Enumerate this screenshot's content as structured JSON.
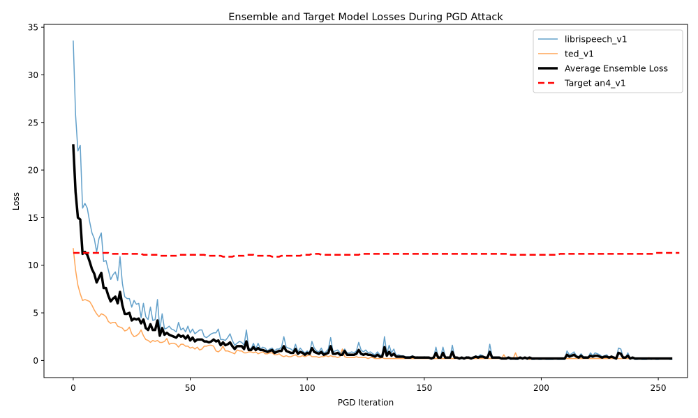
{
  "chart_data": {
    "type": "line",
    "title": "Ensemble and Target Model Losses During PGD Attack",
    "xlabel": "PGD Iteration",
    "ylabel": "Loss",
    "xlim": [
      -12.5,
      262.5
    ],
    "ylim": [
      -1.8,
      35.3
    ],
    "xticks": [
      0,
      50,
      100,
      150,
      200,
      250
    ],
    "yticks": [
      0,
      5,
      10,
      15,
      20,
      25,
      30,
      35
    ],
    "grid": false,
    "legend_position": "upper right",
    "x_start": 0,
    "x_step": 1,
    "series": [
      {
        "name": "librispeech_v1",
        "color": "#1f77b4",
        "opacity": 0.7,
        "width": 1.5,
        "dash": "",
        "values": [
          33.6,
          25.8,
          22.0,
          22.6,
          16.0,
          16.5,
          16.0,
          14.6,
          13.4,
          12.8,
          11.4,
          12.8,
          13.4,
          10.4,
          10.5,
          9.5,
          8.5,
          9.0,
          9.3,
          8.4,
          10.9,
          8.1,
          6.7,
          6.5,
          6.5,
          5.6,
          6.3,
          5.9,
          6.0,
          4.5,
          6.0,
          4.6,
          4.3,
          5.6,
          4.2,
          4.3,
          6.4,
          3.2,
          4.9,
          3.3,
          3.4,
          3.6,
          3.3,
          3.2,
          3.0,
          4.0,
          3.2,
          3.4,
          3.0,
          3.6,
          2.9,
          3.3,
          2.8,
          3.0,
          3.2,
          3.2,
          2.5,
          2.4,
          2.6,
          2.8,
          2.9,
          2.9,
          3.3,
          2.2,
          2.2,
          2.1,
          2.4,
          2.8,
          2.1,
          1.6,
          1.8,
          2.0,
          1.9,
          1.6,
          3.2,
          1.3,
          1.2,
          1.8,
          1.2,
          1.8,
          1.2,
          1.4,
          1.3,
          1.0,
          1.2,
          1.3,
          1.0,
          1.2,
          1.2,
          1.4,
          2.5,
          1.4,
          1.3,
          1.2,
          1.0,
          1.7,
          0.9,
          1.3,
          1.0,
          0.8,
          1.0,
          0.8,
          2.0,
          1.3,
          1.0,
          0.9,
          1.3,
          0.8,
          0.9,
          1.2,
          2.4,
          0.9,
          1.0,
          1.1,
          0.8,
          0.9,
          1.2,
          0.8,
          0.8,
          0.9,
          0.8,
          1.0,
          1.9,
          1.1,
          0.9,
          1.1,
          0.8,
          0.9,
          0.7,
          0.6,
          0.9,
          0.6,
          0.5,
          2.5,
          0.7,
          1.6,
          0.8,
          1.2,
          0.5,
          0.6,
          0.5,
          0.5,
          0.4,
          0.4,
          0.4,
          0.5,
          0.3,
          0.4,
          0.3,
          0.3,
          0.4,
          0.3,
          0.3,
          0.2,
          0.3,
          1.4,
          0.3,
          0.4,
          1.4,
          0.4,
          0.3,
          0.3,
          1.6,
          0.3,
          0.3,
          0.2,
          0.3,
          0.2,
          0.4,
          0.3,
          0.2,
          0.3,
          0.5,
          0.4,
          0.6,
          0.5,
          0.3,
          0.3,
          1.7,
          0.4,
          0.3,
          0.3,
          0.3,
          0.2,
          0.2,
          0.2,
          0.2,
          0.1,
          0.2,
          0.1,
          0.1,
          0.3,
          0.2,
          0.3,
          0.1,
          0.3,
          0.1,
          0.1,
          0.2,
          0.1,
          0.1,
          0.2,
          0.1,
          0.1,
          0.1,
          0.1,
          0.2,
          0.1,
          0.1,
          0.1,
          0.1,
          1.0,
          0.6,
          0.7,
          0.9,
          0.5,
          0.4,
          0.7,
          0.4,
          0.4,
          0.3,
          0.8,
          0.5,
          0.8,
          0.7,
          0.6,
          0.4,
          0.5,
          0.6,
          0.3,
          0.5,
          0.3,
          0.2,
          1.3,
          1.2,
          0.3,
          0.3,
          0.8,
          0.2,
          0.3,
          0.1,
          0.1,
          0.2,
          0.1,
          0.1,
          0.1,
          0.2,
          0.1,
          0.2,
          0.1,
          0.1,
          0.2,
          0.2,
          0.2,
          0.2,
          0.1,
          0.1
        ]
      },
      {
        "name": "ted_v1",
        "color": "#ff7f0e",
        "opacity": 0.7,
        "width": 1.5,
        "dash": "",
        "values": [
          11.8,
          9.5,
          7.9,
          7.0,
          6.3,
          6.4,
          6.3,
          6.2,
          5.8,
          5.3,
          4.9,
          4.6,
          4.9,
          4.8,
          4.6,
          4.1,
          3.9,
          4.0,
          4.0,
          3.6,
          3.5,
          3.4,
          3.1,
          3.2,
          3.5,
          2.8,
          2.5,
          2.6,
          2.8,
          3.2,
          2.6,
          2.2,
          2.1,
          1.9,
          2.1,
          2.0,
          2.1,
          1.9,
          1.9,
          2.0,
          2.3,
          1.7,
          1.8,
          1.8,
          1.7,
          1.4,
          1.7,
          1.7,
          1.5,
          1.5,
          1.3,
          1.4,
          1.2,
          1.4,
          1.1,
          1.2,
          1.5,
          1.5,
          1.6,
          1.6,
          1.5,
          1.0,
          0.9,
          1.1,
          1.5,
          1.0,
          1.0,
          0.9,
          0.8,
          0.7,
          1.1,
          1.0,
          1.0,
          0.8,
          0.8,
          0.9,
          0.9,
          0.8,
          0.9,
          0.7,
          0.8,
          0.9,
          0.7,
          0.7,
          0.8,
          0.8,
          0.6,
          0.6,
          0.7,
          0.5,
          0.4,
          0.5,
          0.4,
          0.4,
          0.5,
          0.6,
          0.4,
          0.4,
          0.5,
          0.4,
          0.5,
          0.6,
          0.4,
          0.4,
          0.4,
          0.3,
          0.4,
          0.4,
          0.5,
          0.4,
          0.5,
          0.4,
          0.4,
          0.3,
          0.4,
          1.2,
          0.4,
          0.3,
          0.3,
          0.3,
          0.3,
          0.4,
          0.3,
          0.3,
          0.3,
          0.3,
          0.2,
          0.3,
          0.3,
          0.2,
          0.2,
          0.2,
          0.3,
          0.2,
          0.2,
          0.2,
          0.2,
          0.2,
          0.2,
          0.2,
          0.2,
          0.2,
          0.2,
          0.2,
          0.2,
          0.2,
          0.2,
          0.2,
          0.2,
          0.2,
          0.2,
          0.2,
          0.2,
          0.2,
          0.2,
          0.2,
          0.2,
          0.2,
          0.2,
          0.2,
          0.2,
          0.2,
          0.2,
          0.2,
          0.2,
          0.2,
          0.2,
          0.2,
          0.2,
          0.2,
          0.2,
          0.2,
          0.2,
          0.2,
          0.2,
          0.2,
          0.2,
          0.2,
          0.2,
          0.2,
          0.2,
          0.2,
          0.2,
          0.2,
          0.6,
          0.2,
          0.2,
          0.3,
          0.2,
          0.8,
          0.2,
          0.2,
          0.2,
          0.2,
          0.2,
          0.1,
          0.2,
          0.2,
          0.2,
          0.2,
          0.2,
          0.2,
          0.2,
          0.2,
          0.2,
          0.2,
          0.2,
          0.2,
          0.2,
          0.2,
          0.2,
          0.2,
          0.2,
          0.2,
          0.2,
          0.2,
          0.2,
          0.2,
          0.2,
          0.2,
          0.2,
          0.2,
          0.2,
          0.2,
          0.2,
          0.2,
          0.2,
          0.2,
          0.2,
          0.2,
          0.2,
          0.2,
          0.2,
          0.2,
          0.2,
          0.2,
          0.2,
          0.2,
          0.2,
          0.2,
          0.2,
          0.2,
          0.2,
          0.2,
          0.2,
          0.2,
          0.3,
          0.2,
          0.2,
          0.2,
          0.2,
          0.2,
          0.2,
          0.2
        ]
      },
      {
        "name": "Average Ensemble Loss",
        "color": "#000000",
        "opacity": 1,
        "width": 3.5,
        "dash": "",
        "values": [
          22.7,
          17.7,
          15.0,
          14.8,
          11.2,
          11.4,
          11.1,
          10.4,
          9.6,
          9.1,
          8.2,
          8.7,
          9.2,
          7.6,
          7.6,
          6.8,
          6.2,
          6.5,
          6.7,
          6.0,
          7.2,
          5.8,
          4.9,
          4.9,
          5.0,
          4.2,
          4.4,
          4.3,
          4.4,
          3.9,
          4.3,
          3.4,
          3.2,
          3.8,
          3.2,
          3.2,
          4.2,
          2.6,
          3.4,
          2.7,
          2.9,
          2.7,
          2.6,
          2.5,
          2.4,
          2.7,
          2.5,
          2.6,
          2.3,
          2.6,
          2.1,
          2.4,
          2.0,
          2.2,
          2.2,
          2.2,
          2.0,
          2.0,
          1.9,
          2.0,
          2.2,
          2.0,
          2.1,
          1.6,
          1.9,
          1.6,
          1.7,
          1.9,
          1.5,
          1.2,
          1.5,
          1.5,
          1.5,
          1.2,
          2.0,
          1.1,
          1.1,
          1.4,
          1.1,
          1.3,
          1.1,
          1.1,
          1.0,
          0.9,
          1.0,
          1.1,
          0.8,
          0.9,
          1.0,
          1.0,
          1.5,
          1.0,
          0.9,
          0.8,
          0.8,
          1.2,
          0.7,
          0.9,
          0.8,
          0.6,
          0.8,
          0.7,
          1.3,
          0.9,
          0.8,
          0.7,
          0.9,
          0.6,
          0.7,
          0.8,
          1.5,
          0.7,
          0.7,
          0.8,
          0.6,
          0.6,
          1.0,
          0.6,
          0.6,
          0.6,
          0.6,
          0.7,
          1.1,
          0.7,
          0.6,
          0.7,
          0.6,
          0.6,
          0.5,
          0.4,
          0.6,
          0.4,
          0.4,
          1.4,
          0.5,
          0.9,
          0.5,
          0.7,
          0.4,
          0.4,
          0.4,
          0.4,
          0.3,
          0.3,
          0.3,
          0.4,
          0.3,
          0.3,
          0.3,
          0.3,
          0.3,
          0.3,
          0.3,
          0.2,
          0.3,
          0.8,
          0.3,
          0.3,
          0.8,
          0.3,
          0.3,
          0.3,
          0.9,
          0.3,
          0.3,
          0.2,
          0.3,
          0.2,
          0.3,
          0.3,
          0.2,
          0.3,
          0.4,
          0.3,
          0.4,
          0.4,
          0.3,
          0.3,
          0.9,
          0.3,
          0.3,
          0.3,
          0.3,
          0.2,
          0.2,
          0.2,
          0.3,
          0.2,
          0.2,
          0.2,
          0.2,
          0.3,
          0.2,
          0.3,
          0.2,
          0.3,
          0.2,
          0.2,
          0.2,
          0.2,
          0.2,
          0.2,
          0.2,
          0.2,
          0.2,
          0.2,
          0.2,
          0.2,
          0.2,
          0.2,
          0.2,
          0.6,
          0.4,
          0.5,
          0.6,
          0.4,
          0.3,
          0.5,
          0.3,
          0.3,
          0.3,
          0.5,
          0.4,
          0.5,
          0.5,
          0.4,
          0.3,
          0.4,
          0.4,
          0.3,
          0.4,
          0.3,
          0.2,
          0.8,
          0.7,
          0.3,
          0.3,
          0.5,
          0.2,
          0.3,
          0.2,
          0.2,
          0.2,
          0.2,
          0.2,
          0.2,
          0.2,
          0.2,
          0.2,
          0.2,
          0.2,
          0.2,
          0.2,
          0.2,
          0.2,
          0.2,
          0.2
        ]
      },
      {
        "name": "Target an4_v1",
        "color": "#ff0000",
        "opacity": 1,
        "width": 2.5,
        "dash": "9,5",
        "values": [
          11.3,
          11.3,
          11.3,
          11.3,
          11.3,
          11.3,
          11.3,
          11.3,
          11.3,
          11.3,
          11.3,
          11.3,
          11.3,
          11.3,
          11.3,
          11.3,
          11.2,
          11.2,
          11.2,
          11.2,
          11.2,
          11.2,
          11.2,
          11.2,
          11.2,
          11.2,
          11.2,
          11.2,
          11.2,
          11.2,
          11.1,
          11.1,
          11.1,
          11.1,
          11.1,
          11.1,
          11.1,
          11.0,
          11.0,
          11.0,
          11.0,
          11.0,
          11.0,
          11.0,
          11.0,
          11.1,
          11.1,
          11.1,
          11.1,
          11.1,
          11.1,
          11.1,
          11.1,
          11.1,
          11.1,
          11.1,
          11.1,
          11.0,
          11.0,
          11.0,
          11.0,
          11.0,
          11.0,
          11.0,
          10.9,
          10.9,
          10.9,
          10.9,
          10.9,
          11.0,
          11.0,
          11.0,
          11.0,
          11.0,
          11.1,
          11.1,
          11.1,
          11.1,
          11.0,
          11.0,
          11.0,
          11.0,
          11.0,
          11.0,
          11.0,
          10.9,
          10.9,
          10.9,
          10.9,
          11.0,
          11.0,
          11.0,
          11.0,
          11.0,
          11.0,
          11.0,
          11.0,
          11.0,
          11.1,
          11.1,
          11.1,
          11.1,
          11.2,
          11.2,
          11.2,
          11.2,
          11.1,
          11.1,
          11.1,
          11.1,
          11.1,
          11.1,
          11.1,
          11.1,
          11.1,
          11.1,
          11.1,
          11.1,
          11.1,
          11.1,
          11.1,
          11.1,
          11.1,
          11.2,
          11.2,
          11.2,
          11.2,
          11.2,
          11.2,
          11.2,
          11.2,
          11.2,
          11.2,
          11.2,
          11.2,
          11.2,
          11.2,
          11.2,
          11.2,
          11.2,
          11.2,
          11.2,
          11.2,
          11.2,
          11.2,
          11.2,
          11.2,
          11.2,
          11.2,
          11.2,
          11.2,
          11.2,
          11.2,
          11.2,
          11.2,
          11.2,
          11.2,
          11.2,
          11.2,
          11.2,
          11.2,
          11.2,
          11.2,
          11.2,
          11.2,
          11.2,
          11.2,
          11.2,
          11.2,
          11.2,
          11.2,
          11.2,
          11.2,
          11.2,
          11.2,
          11.2,
          11.2,
          11.2,
          11.2,
          11.2,
          11.2,
          11.2,
          11.2,
          11.2,
          11.2,
          11.2,
          11.2,
          11.1,
          11.1,
          11.1,
          11.1,
          11.1,
          11.1,
          11.1,
          11.1,
          11.1,
          11.1,
          11.1,
          11.1,
          11.1,
          11.1,
          11.1,
          11.1,
          11.1,
          11.1,
          11.1,
          11.1,
          11.1,
          11.2,
          11.2,
          11.2,
          11.2,
          11.2,
          11.2,
          11.2,
          11.2,
          11.2,
          11.2,
          11.2,
          11.2,
          11.2,
          11.2,
          11.2,
          11.2,
          11.2,
          11.2,
          11.2,
          11.2,
          11.2,
          11.2,
          11.2,
          11.2,
          11.2,
          11.2,
          11.2,
          11.2,
          11.2,
          11.2,
          11.2,
          11.2,
          11.2,
          11.2,
          11.2,
          11.2,
          11.2,
          11.2,
          11.2,
          11.2,
          11.2,
          11.3,
          11.3,
          11.3,
          11.3,
          11.3,
          11.3,
          11.3,
          11.3,
          11.3,
          11.3,
          11.3
        ]
      }
    ]
  }
}
